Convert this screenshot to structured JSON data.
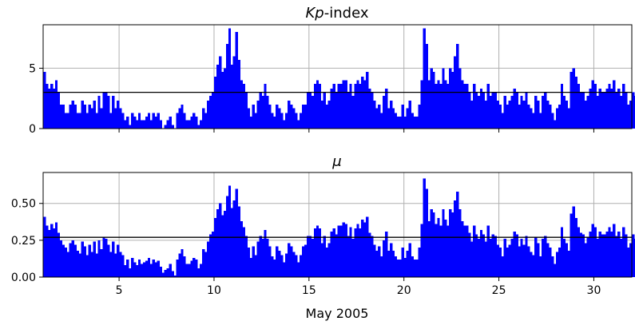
{
  "chart_data": [
    {
      "type": "bar",
      "title": "Kp-index",
      "title_italic_part": "Kp",
      "title_rest": "-index",
      "xlim": [
        1,
        32
      ],
      "ylim": [
        0,
        8.6
      ],
      "yticks": [
        0,
        5
      ],
      "ytick_labels": [
        "0",
        "5"
      ],
      "reference_line": 3,
      "bar_color": "#0000ff",
      "grid": true,
      "bins_per_day": 8,
      "values": [
        4.7,
        3.7,
        3.3,
        3.7,
        3.3,
        4.0,
        3.0,
        2.0,
        2.0,
        1.3,
        1.3,
        2.0,
        2.3,
        2.0,
        1.3,
        1.3,
        2.3,
        2.0,
        1.3,
        2.0,
        1.7,
        2.3,
        1.3,
        2.7,
        1.7,
        3.0,
        3.0,
        2.7,
        1.3,
        2.7,
        1.7,
        2.3,
        1.7,
        1.3,
        0.7,
        1.0,
        0.3,
        1.3,
        1.0,
        0.7,
        1.3,
        0.7,
        0.7,
        1.0,
        1.3,
        0.7,
        1.3,
        1.0,
        1.3,
        0.7,
        0.0,
        0.3,
        0.7,
        1.0,
        0.3,
        0.0,
        1.3,
        1.7,
        2.0,
        1.3,
        0.7,
        0.7,
        1.0,
        1.3,
        1.0,
        0.3,
        0.7,
        1.7,
        1.3,
        2.3,
        2.7,
        3.0,
        4.3,
        5.3,
        6.0,
        4.7,
        5.0,
        7.0,
        8.3,
        5.3,
        6.0,
        8.0,
        5.7,
        4.0,
        3.7,
        3.0,
        1.7,
        1.0,
        2.0,
        1.3,
        2.3,
        3.0,
        2.7,
        3.7,
        2.7,
        2.0,
        1.3,
        1.0,
        2.0,
        1.7,
        1.3,
        0.7,
        1.3,
        2.3,
        2.0,
        1.7,
        1.3,
        0.7,
        1.3,
        2.0,
        2.0,
        3.0,
        3.0,
        2.7,
        3.7,
        4.0,
        3.7,
        2.3,
        3.0,
        2.0,
        2.3,
        3.3,
        3.7,
        3.0,
        3.7,
        3.7,
        4.0,
        4.0,
        3.0,
        3.7,
        2.7,
        3.7,
        4.0,
        3.7,
        4.3,
        4.0,
        4.7,
        3.3,
        3.0,
        2.3,
        1.7,
        2.0,
        1.3,
        2.7,
        3.3,
        1.7,
        2.3,
        1.7,
        1.3,
        1.0,
        1.0,
        2.0,
        1.0,
        1.7,
        2.3,
        1.3,
        1.0,
        1.0,
        2.0,
        4.0,
        8.3,
        7.0,
        4.0,
        5.0,
        4.7,
        3.7,
        4.0,
        3.7,
        5.0,
        4.0,
        3.7,
        5.0,
        4.7,
        6.0,
        7.0,
        5.0,
        4.0,
        3.7,
        3.7,
        3.0,
        2.3,
        3.7,
        3.0,
        2.7,
        3.3,
        3.0,
        2.3,
        3.7,
        2.7,
        3.0,
        3.0,
        2.3,
        2.0,
        1.3,
        2.7,
        2.0,
        2.3,
        2.7,
        3.3,
        3.0,
        2.0,
        2.7,
        2.3,
        3.0,
        2.0,
        1.7,
        1.3,
        2.7,
        2.3,
        1.3,
        2.7,
        3.0,
        2.3,
        2.0,
        1.3,
        0.7,
        1.7,
        2.0,
        3.7,
        2.7,
        2.3,
        1.7,
        4.7,
        5.0,
        4.3,
        3.7,
        3.0,
        3.0,
        2.3,
        2.7,
        3.3,
        4.0,
        3.7,
        2.7,
        3.3,
        3.0,
        3.0,
        3.3,
        3.7,
        3.3,
        4.0,
        3.0,
        3.3,
        2.7,
        3.7,
        3.0,
        2.0,
        2.3,
        3.0,
        2.7,
        1.7,
        2.0,
        1.3,
        0.7,
        1.3,
        1.0,
        1.7,
        1.3,
        1.7,
        1.0,
        1.3,
        2.0,
        1.7,
        0.7,
        1.3,
        1.0,
        0.3,
        0.0,
        1.0,
        1.3,
        0.7,
        0.3,
        1.3,
        0.7,
        1.0,
        0.3,
        0.7,
        0.7,
        1.3,
        1.0,
        0.7,
        1.0,
        0.7,
        0.3,
        0.0,
        0.3,
        0.3,
        0.3,
        0.3,
        0.3,
        0.3,
        0.3,
        0.3,
        0.3,
        0.3,
        0.3,
        0.3,
        0.7,
        0.3,
        0.3,
        0.3,
        0.0,
        0.0,
        0.0,
        0.0,
        0.7,
        1.3,
        2.0,
        1.3,
        1.7,
        2.3,
        2.3,
        3.3,
        3.0,
        3.7,
        3.7,
        3.0,
        4.0,
        3.3,
        3.0,
        3.0,
        3.0,
        3.0,
        1.3,
        3.0,
        3.0,
        3.3,
        3.3,
        4.3,
        5.0,
        5.7,
        4.7,
        6.0,
        7.3,
        7.7,
        7.3,
        5.7,
        5.7,
        4.3,
        3.7,
        3.3,
        3.0,
        2.7,
        3.3,
        3.0,
        2.7,
        2.0
      ]
    },
    {
      "type": "bar",
      "title": "μ",
      "xlim": [
        1,
        32
      ],
      "ylim": [
        0,
        0.71
      ],
      "yticks": [
        0,
        0.25,
        0.5
      ],
      "ytick_labels": [
        "0.00",
        "0.25",
        "0.50"
      ],
      "xticks": [
        5,
        10,
        15,
        20,
        25,
        30
      ],
      "xtick_labels": [
        "5",
        "10",
        "15",
        "20",
        "25",
        "30"
      ],
      "xlabel": "May 2005",
      "reference_line": 0.27,
      "bar_color": "#0000ff",
      "grid": true,
      "bins_per_day": 8,
      "values": [
        0.41,
        0.35,
        0.32,
        0.36,
        0.33,
        0.37,
        0.3,
        0.25,
        0.22,
        0.2,
        0.17,
        0.23,
        0.25,
        0.22,
        0.18,
        0.16,
        0.24,
        0.21,
        0.15,
        0.22,
        0.17,
        0.24,
        0.16,
        0.25,
        0.19,
        0.27,
        0.26,
        0.22,
        0.17,
        0.24,
        0.16,
        0.22,
        0.17,
        0.15,
        0.08,
        0.12,
        0.06,
        0.13,
        0.1,
        0.08,
        0.12,
        0.09,
        0.1,
        0.11,
        0.13,
        0.09,
        0.12,
        0.1,
        0.11,
        0.07,
        0.03,
        0.05,
        0.06,
        0.09,
        0.04,
        0.01,
        0.12,
        0.16,
        0.19,
        0.14,
        0.09,
        0.09,
        0.11,
        0.13,
        0.12,
        0.06,
        0.09,
        0.19,
        0.17,
        0.24,
        0.29,
        0.31,
        0.4,
        0.46,
        0.5,
        0.42,
        0.45,
        0.55,
        0.62,
        0.47,
        0.52,
        0.6,
        0.48,
        0.38,
        0.34,
        0.28,
        0.2,
        0.13,
        0.21,
        0.15,
        0.24,
        0.28,
        0.26,
        0.32,
        0.26,
        0.21,
        0.14,
        0.12,
        0.21,
        0.18,
        0.15,
        0.1,
        0.16,
        0.23,
        0.21,
        0.17,
        0.15,
        0.1,
        0.15,
        0.21,
        0.22,
        0.28,
        0.28,
        0.26,
        0.33,
        0.35,
        0.33,
        0.23,
        0.28,
        0.2,
        0.23,
        0.31,
        0.33,
        0.29,
        0.35,
        0.35,
        0.37,
        0.36,
        0.28,
        0.34,
        0.26,
        0.33,
        0.36,
        0.33,
        0.39,
        0.37,
        0.41,
        0.3,
        0.28,
        0.22,
        0.18,
        0.21,
        0.14,
        0.25,
        0.31,
        0.18,
        0.23,
        0.18,
        0.14,
        0.12,
        0.12,
        0.2,
        0.13,
        0.18,
        0.23,
        0.14,
        0.12,
        0.12,
        0.2,
        0.36,
        0.67,
        0.6,
        0.38,
        0.46,
        0.44,
        0.36,
        0.4,
        0.35,
        0.46,
        0.39,
        0.35,
        0.46,
        0.44,
        0.52,
        0.58,
        0.46,
        0.38,
        0.35,
        0.35,
        0.3,
        0.24,
        0.35,
        0.29,
        0.26,
        0.32,
        0.29,
        0.24,
        0.35,
        0.26,
        0.29,
        0.28,
        0.22,
        0.2,
        0.14,
        0.26,
        0.2,
        0.22,
        0.26,
        0.31,
        0.29,
        0.21,
        0.26,
        0.22,
        0.28,
        0.21,
        0.17,
        0.15,
        0.27,
        0.23,
        0.14,
        0.26,
        0.28,
        0.23,
        0.2,
        0.14,
        0.09,
        0.17,
        0.2,
        0.34,
        0.26,
        0.23,
        0.18,
        0.43,
        0.48,
        0.4,
        0.34,
        0.3,
        0.29,
        0.23,
        0.27,
        0.31,
        0.36,
        0.34,
        0.26,
        0.31,
        0.29,
        0.29,
        0.31,
        0.34,
        0.31,
        0.36,
        0.28,
        0.31,
        0.26,
        0.34,
        0.29,
        0.2,
        0.23,
        0.29,
        0.26,
        0.18,
        0.2,
        0.14,
        0.09,
        0.14,
        0.11,
        0.18,
        0.14,
        0.18,
        0.11,
        0.14,
        0.2,
        0.18,
        0.08,
        0.14,
        0.11,
        0.05,
        0.03,
        0.11,
        0.14,
        0.08,
        0.05,
        0.14,
        0.08,
        0.11,
        0.05,
        0.08,
        0.08,
        0.14,
        0.11,
        0.08,
        0.11,
        0.08,
        0.05,
        0.03,
        0.05,
        0.05,
        0.05,
        0.05,
        0.04,
        0.05,
        0.04,
        0.06,
        0.04,
        0.05,
        0.04,
        0.06,
        0.08,
        0.05,
        0.04,
        0.05,
        0.02,
        0.01,
        0.01,
        0.01,
        0.09,
        0.15,
        0.2,
        0.15,
        0.18,
        0.22,
        0.22,
        0.3,
        0.28,
        0.34,
        0.34,
        0.28,
        0.37,
        0.31,
        0.28,
        0.28,
        0.28,
        0.28,
        0.15,
        0.28,
        0.28,
        0.31,
        0.31,
        0.39,
        0.45,
        0.49,
        0.42,
        0.5,
        0.52,
        0.53,
        0.52,
        0.47,
        0.48,
        0.37,
        0.33,
        0.3,
        0.28,
        0.26,
        0.3,
        0.28,
        0.26,
        0.2
      ]
    }
  ]
}
